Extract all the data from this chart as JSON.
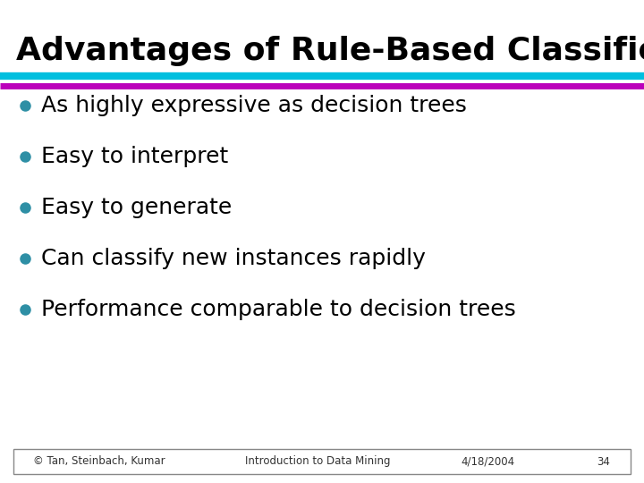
{
  "title": "Advantages of Rule-Based Classifiers",
  "title_fontsize": 26,
  "title_color": "#000000",
  "title_bold": true,
  "background_color": "#ffffff",
  "line1_color": "#00BFDF",
  "line2_color": "#BB00BB",
  "bullet_color": "#2E8FA5",
  "bullet_items": [
    "As highly expressive as decision trees",
    "Easy to interpret",
    "Easy to generate",
    "Can classify new instances rapidly",
    "Performance comparable to decision trees"
  ],
  "bullet_fontsize": 18,
  "footer_left": "© Tan, Steinbach, Kumar",
  "footer_mid": "Introduction to Data Mining",
  "footer_right1": "4/18/2004",
  "footer_right2": "34",
  "footer_fontsize": 8.5
}
